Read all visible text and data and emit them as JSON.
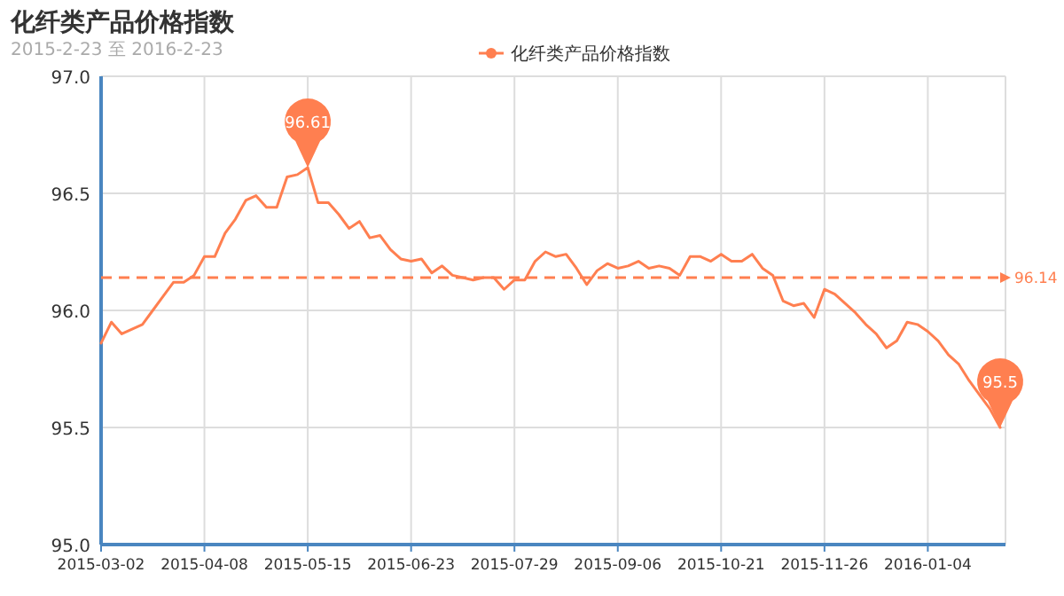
{
  "chart_data": {
    "type": "line",
    "title": "化纤类产品价格指数",
    "subtitle": "2015-2-23 至 2016-2-23",
    "categories": [
      "2015-03-02",
      null,
      null,
      null,
      null,
      null,
      null,
      null,
      null,
      null,
      "2015-04-08",
      null,
      null,
      null,
      null,
      null,
      null,
      null,
      null,
      null,
      "2015-05-15",
      null,
      null,
      null,
      null,
      null,
      null,
      null,
      null,
      null,
      "2015-06-23",
      null,
      null,
      null,
      null,
      null,
      null,
      null,
      null,
      null,
      "2015-07-29",
      null,
      null,
      null,
      null,
      null,
      null,
      null,
      null,
      null,
      "2015-09-06",
      null,
      null,
      null,
      null,
      null,
      null,
      null,
      null,
      null,
      "2015-10-21",
      null,
      null,
      null,
      null,
      null,
      null,
      null,
      null,
      null,
      "2015-11-26",
      null,
      null,
      null,
      null,
      null,
      null,
      null,
      null,
      null,
      "2016-01-04",
      null,
      null,
      null,
      null,
      null,
      null,
      null
    ],
    "series": [
      {
        "name": "化纤类产品价格指数",
        "color": "#ff7f50",
        "values": [
          95.86,
          95.95,
          95.9,
          95.92,
          95.94,
          96.0,
          96.06,
          96.12,
          96.12,
          96.15,
          96.23,
          96.23,
          96.33,
          96.39,
          96.47,
          96.49,
          96.44,
          96.44,
          96.57,
          96.58,
          96.61,
          96.46,
          96.46,
          96.41,
          96.35,
          96.38,
          96.31,
          96.32,
          96.26,
          96.22,
          96.21,
          96.22,
          96.16,
          96.19,
          96.15,
          96.14,
          96.13,
          96.14,
          96.14,
          96.09,
          96.13,
          96.13,
          96.21,
          96.25,
          96.23,
          96.24,
          96.18,
          96.11,
          96.17,
          96.2,
          96.18,
          96.19,
          96.21,
          96.18,
          96.19,
          96.18,
          96.15,
          96.23,
          96.23,
          96.21,
          96.24,
          96.21,
          96.21,
          96.24,
          96.18,
          96.15,
          96.04,
          96.02,
          96.03,
          95.97,
          96.09,
          96.07,
          96.03,
          95.99,
          95.94,
          95.9,
          95.84,
          95.87,
          95.95,
          95.94,
          95.91,
          95.87,
          95.81,
          95.77,
          95.7,
          95.64,
          95.58,
          95.5
        ]
      }
    ],
    "ylim": [
      95,
      97
    ],
    "yticks": [
      {
        "value": 95,
        "label": "95.0"
      },
      {
        "value": 95.5,
        "label": "95.5"
      },
      {
        "value": 96,
        "label": "96.0"
      },
      {
        "value": 96.5,
        "label": "96.5"
      },
      {
        "value": 97,
        "label": "97.0"
      }
    ],
    "ref_lines": [
      {
        "axis": "y",
        "value": 96.14,
        "label": "96.14",
        "color": "#ff7f50",
        "line_style": "dashed"
      }
    ],
    "annotations": [
      {
        "text": "96.61",
        "x": "2015-05-15",
        "y": 96.61
      },
      {
        "text": "95.5",
        "y": 95.5
      }
    ],
    "grid": true,
    "legend": "top"
  }
}
